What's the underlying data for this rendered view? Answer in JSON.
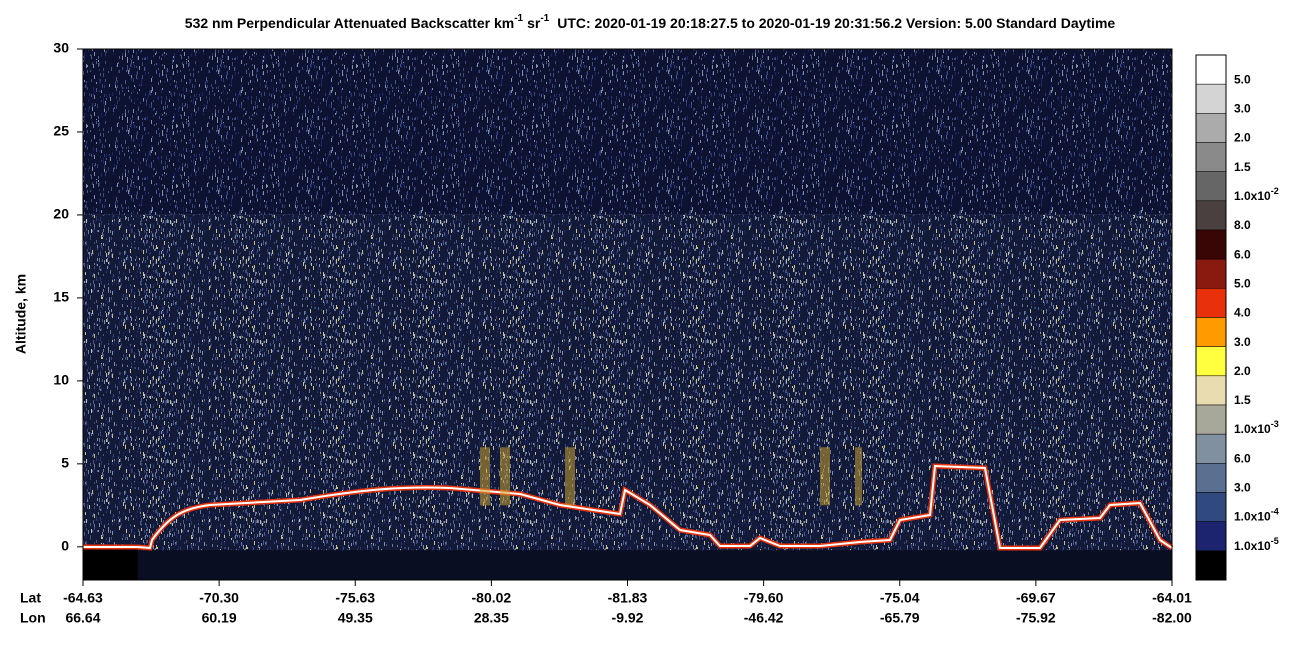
{
  "chart_data": {
    "type": "curtain",
    "title": {
      "parts": [
        "532 nm Perpendicular Attenuated Backscatter km",
        "sr",
        "UTC: 2020-01-19 20:18:27.5 to 2020-01-19 20:31:56.2  Version: 5.00 Standard Daytime"
      ],
      "sup": "-1"
    },
    "y_label": "Altitude, km",
    "ylim": [
      -2,
      30
    ],
    "yticks": [
      0,
      5,
      10,
      15,
      20,
      25,
      30
    ],
    "row_labels": [
      "Lat",
      "Lon"
    ],
    "lat": [
      "-64.63",
      "-70.30",
      "-75.63",
      "-80.02",
      "-81.83",
      "-79.60",
      "-75.04",
      "-69.67",
      "-64.01"
    ],
    "lon": [
      "66.64",
      "60.19",
      "49.35",
      "28.35",
      "-9.92",
      "-46.42",
      "-65.79",
      "-75.92",
      "-82.00"
    ],
    "colorbar": {
      "colors": [
        "#ffffff",
        "#d4d4d4",
        "#ababab",
        "#8a8a8a",
        "#666666",
        "#4a4040",
        "#3a0505",
        "#8a1a10",
        "#e8300a",
        "#ff9a00",
        "#ffff40",
        "#e8dcb0",
        "#a8a89a",
        "#8090a0",
        "#5a7090",
        "#304a80",
        "#1c2470",
        "#000000"
      ],
      "labels": [
        "5.0",
        "3.0",
        "2.0",
        "1.5",
        {
          "text": "1.0x10",
          "sup": "-2"
        },
        "8.0",
        "6.0",
        "5.0",
        "4.0",
        "3.0",
        "2.0",
        "1.5",
        {
          "text": "1.0x10",
          "sup": "-3"
        },
        "6.0",
        "3.0",
        {
          "text": "1.0x10",
          "sup": "-4"
        },
        {
          "text": "1.0x10",
          "sup": "-5"
        }
      ]
    }
  }
}
